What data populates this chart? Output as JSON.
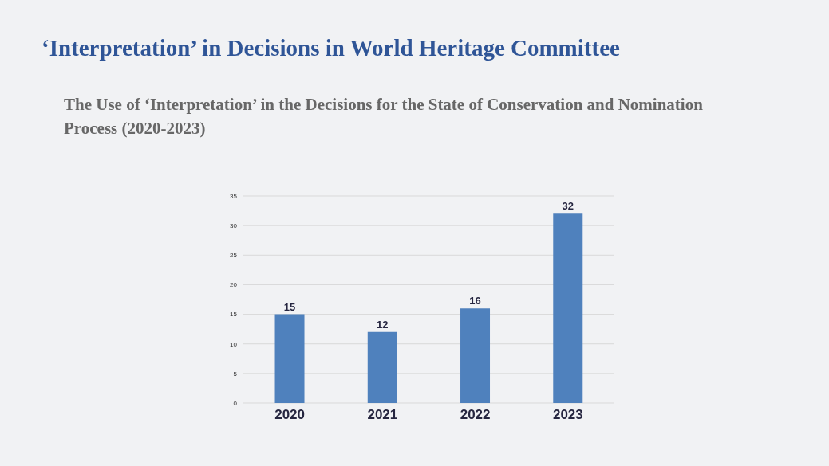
{
  "chart_data": {
    "type": "bar",
    "title": "‘Interpretation’ in Decisions in World Heritage Committee",
    "subtitle": "The Use of ‘Interpretation’ in the Decisions for the State of Conservation and Nomination Process (2020-2023)",
    "categories": [
      "2020",
      "2021",
      "2022",
      "2023"
    ],
    "values": [
      15,
      12,
      16,
      32
    ],
    "color": "#4f81bd",
    "ylim": [
      0,
      35
    ],
    "yticks": [
      0,
      5,
      10,
      15,
      20,
      25,
      30,
      35
    ],
    "grid": "y",
    "data_labels": true
  }
}
